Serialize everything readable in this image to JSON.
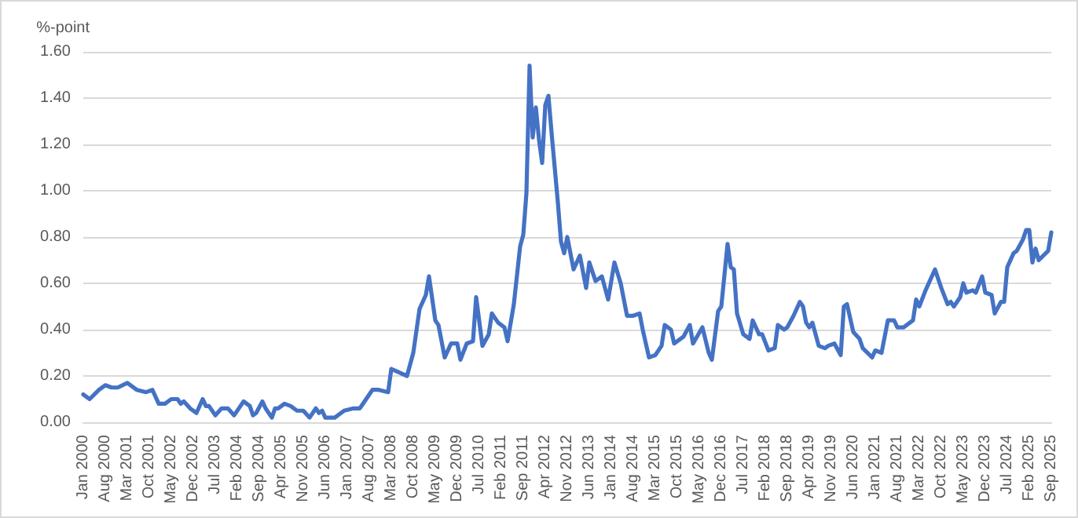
{
  "chart_data": {
    "type": "line",
    "ylabel": "%-point",
    "x": [
      "2000-01",
      "2000-03",
      "2000-06",
      "2000-08",
      "2000-10",
      "2000-12",
      "2001-03",
      "2001-06",
      "2001-09",
      "2001-11",
      "2002-01",
      "2002-03",
      "2002-05",
      "2002-07",
      "2002-08",
      "2002-09",
      "2002-11",
      "2003-01",
      "2003-03",
      "2003-04",
      "2003-05",
      "2003-07",
      "2003-09",
      "2003-11",
      "2004-01",
      "2004-03",
      "2004-04",
      "2004-06",
      "2004-07",
      "2004-08",
      "2004-10",
      "2004-11",
      "2005-01",
      "2005-02",
      "2005-03",
      "2005-05",
      "2005-07",
      "2005-09",
      "2005-11",
      "2006-01",
      "2006-03",
      "2006-04",
      "2006-05",
      "2006-06",
      "2006-09",
      "2006-12",
      "2007-03",
      "2007-05",
      "2007-07",
      "2007-09",
      "2007-11",
      "2008-02",
      "2008-03",
      "2008-08",
      "2008-10",
      "2008-12",
      "2009-02",
      "2009-03",
      "2009-05",
      "2009-06",
      "2009-08",
      "2009-10",
      "2009-12",
      "2010-01",
      "2010-03",
      "2010-05",
      "2010-06",
      "2010-08",
      "2010-10",
      "2010-11",
      "2011-01",
      "2011-03",
      "2011-04",
      "2011-06",
      "2011-08",
      "2011-09",
      "2011-10",
      "2011-11",
      "2011-12",
      "2012-01",
      "2012-02",
      "2012-03",
      "2012-04",
      "2012-05",
      "2012-06",
      "2012-08",
      "2012-09",
      "2012-10",
      "2012-11",
      "2013-01",
      "2013-03",
      "2013-05",
      "2013-06",
      "2013-08",
      "2013-10",
      "2013-12",
      "2014-02",
      "2014-04",
      "2014-06",
      "2014-08",
      "2014-10",
      "2014-11",
      "2015-01",
      "2015-03",
      "2015-05",
      "2015-06",
      "2015-08",
      "2015-09",
      "2015-12",
      "2016-02",
      "2016-03",
      "2016-06",
      "2016-08",
      "2016-09",
      "2016-11",
      "2016-12",
      "2017-02",
      "2017-03",
      "2017-04",
      "2017-05",
      "2017-07",
      "2017-09",
      "2017-10",
      "2017-12",
      "2018-01",
      "2018-03",
      "2018-05",
      "2018-06",
      "2018-08",
      "2018-09",
      "2018-11",
      "2019-01",
      "2019-02",
      "2019-03",
      "2019-04",
      "2019-05",
      "2019-07",
      "2019-09",
      "2019-10",
      "2019-12",
      "2020-02",
      "2020-03",
      "2020-04",
      "2020-06",
      "2020-08",
      "2020-09",
      "2020-12",
      "2021-01",
      "2021-03",
      "2021-05",
      "2021-07",
      "2021-08",
      "2021-10",
      "2022-01",
      "2022-02",
      "2022-03",
      "2022-05",
      "2022-08",
      "2022-10",
      "2022-12",
      "2023-01",
      "2023-02",
      "2023-04",
      "2023-05",
      "2023-06",
      "2023-08",
      "2023-09",
      "2023-11",
      "2023-12",
      "2024-02",
      "2024-03",
      "2024-05",
      "2024-06",
      "2024-07",
      "2024-09",
      "2024-10",
      "2024-12",
      "2025-01",
      "2025-02",
      "2025-03",
      "2025-04",
      "2025-05",
      "2025-08",
      "2025-09"
    ],
    "series": [
      {
        "color": "#4472c4",
        "values": [
          0.12,
          0.1,
          0.14,
          0.16,
          0.15,
          0.15,
          0.17,
          0.14,
          0.13,
          0.14,
          0.08,
          0.08,
          0.1,
          0.1,
          0.08,
          0.09,
          0.06,
          0.04,
          0.1,
          0.07,
          0.07,
          0.03,
          0.06,
          0.06,
          0.03,
          0.07,
          0.09,
          0.07,
          0.03,
          0.04,
          0.09,
          0.06,
          0.02,
          0.06,
          0.06,
          0.08,
          0.07,
          0.05,
          0.05,
          0.02,
          0.06,
          0.04,
          0.05,
          0.02,
          0.02,
          0.05,
          0.06,
          0.06,
          0.1,
          0.14,
          0.14,
          0.13,
          0.23,
          0.2,
          0.3,
          0.49,
          0.55,
          0.63,
          0.44,
          0.42,
          0.28,
          0.34,
          0.34,
          0.27,
          0.34,
          0.35,
          0.54,
          0.33,
          0.38,
          0.47,
          0.43,
          0.41,
          0.35,
          0.51,
          0.76,
          0.81,
          0.99,
          1.54,
          1.23,
          1.36,
          1.22,
          1.12,
          1.37,
          1.41,
          1.25,
          0.95,
          0.78,
          0.73,
          0.8,
          0.66,
          0.72,
          0.58,
          0.69,
          0.61,
          0.63,
          0.53,
          0.69,
          0.6,
          0.46,
          0.46,
          0.47,
          0.4,
          0.28,
          0.29,
          0.33,
          0.42,
          0.4,
          0.34,
          0.37,
          0.42,
          0.34,
          0.41,
          0.3,
          0.27,
          0.48,
          0.5,
          0.77,
          0.67,
          0.66,
          0.47,
          0.38,
          0.36,
          0.44,
          0.38,
          0.38,
          0.31,
          0.32,
          0.42,
          0.4,
          0.41,
          0.46,
          0.52,
          0.5,
          0.43,
          0.41,
          0.43,
          0.33,
          0.32,
          0.33,
          0.34,
          0.29,
          0.5,
          0.51,
          0.39,
          0.36,
          0.32,
          0.28,
          0.31,
          0.3,
          0.44,
          0.44,
          0.41,
          0.41,
          0.44,
          0.53,
          0.5,
          0.57,
          0.66,
          0.58,
          0.51,
          0.52,
          0.5,
          0.54,
          0.6,
          0.56,
          0.57,
          0.56,
          0.63,
          0.56,
          0.55,
          0.47,
          0.52,
          0.52,
          0.67,
          0.73,
          0.74,
          0.79,
          0.83,
          0.83,
          0.69,
          0.75,
          0.7,
          0.74,
          0.82
        ]
      }
    ],
    "xlim": [
      "2000-01",
      "2025-09"
    ],
    "xticks": [
      {
        "value": "2000-01",
        "label": "Jan 2000"
      },
      {
        "value": "2000-08",
        "label": "Aug 2000"
      },
      {
        "value": "2001-03",
        "label": "Mar 2001"
      },
      {
        "value": "2001-10",
        "label": "Oct 2001"
      },
      {
        "value": "2002-05",
        "label": "May 2002"
      },
      {
        "value": "2002-12",
        "label": "Dec 2002"
      },
      {
        "value": "2003-07",
        "label": "Jul 2003"
      },
      {
        "value": "2004-02",
        "label": "Feb 2004"
      },
      {
        "value": "2004-09",
        "label": "Sep 2004"
      },
      {
        "value": "2005-04",
        "label": "Apr 2005"
      },
      {
        "value": "2005-11",
        "label": "Nov 2005"
      },
      {
        "value": "2006-06",
        "label": "Jun 2006"
      },
      {
        "value": "2007-01",
        "label": "Jan 2007"
      },
      {
        "value": "2007-08",
        "label": "Aug 2007"
      },
      {
        "value": "2008-03",
        "label": "Mar 2008"
      },
      {
        "value": "2008-10",
        "label": "Oct 2008"
      },
      {
        "value": "2009-05",
        "label": "May 2009"
      },
      {
        "value": "2009-12",
        "label": "Dec 2009"
      },
      {
        "value": "2010-07",
        "label": "Jul 2010"
      },
      {
        "value": "2011-02",
        "label": "Feb 2011"
      },
      {
        "value": "2011-09",
        "label": "Sep 2011"
      },
      {
        "value": "2012-04",
        "label": "Apr 2012"
      },
      {
        "value": "2012-11",
        "label": "Nov 2012"
      },
      {
        "value": "2013-06",
        "label": "Jun 2013"
      },
      {
        "value": "2014-01",
        "label": "Jan 2014"
      },
      {
        "value": "2014-08",
        "label": "Aug 2014"
      },
      {
        "value": "2015-03",
        "label": "Mar 2015"
      },
      {
        "value": "2015-10",
        "label": "Oct 2015"
      },
      {
        "value": "2016-05",
        "label": "May 2016"
      },
      {
        "value": "2016-12",
        "label": "Dec 2016"
      },
      {
        "value": "2017-07",
        "label": "Jul 2017"
      },
      {
        "value": "2018-02",
        "label": "Feb 2018"
      },
      {
        "value": "2018-09",
        "label": "Sep 2018"
      },
      {
        "value": "2019-04",
        "label": "Apr 2019"
      },
      {
        "value": "2019-11",
        "label": "Nov 2019"
      },
      {
        "value": "2020-06",
        "label": "Jun 2020"
      },
      {
        "value": "2021-01",
        "label": "Jan 2021"
      },
      {
        "value": "2021-08",
        "label": "Aug 2021"
      },
      {
        "value": "2022-03",
        "label": "Mar 2022"
      },
      {
        "value": "2022-10",
        "label": "Oct 2022"
      },
      {
        "value": "2023-05",
        "label": "May 2023"
      },
      {
        "value": "2023-12",
        "label": "Dec 2023"
      },
      {
        "value": "2024-07",
        "label": "Jul 2024"
      },
      {
        "value": "2025-02",
        "label": "Feb 2025"
      },
      {
        "value": "2025-09",
        "label": "Sep 2025"
      }
    ],
    "ylim": [
      0,
      1.6
    ],
    "yticks": [
      {
        "value": 0,
        "label": "0.00"
      },
      {
        "value": 0.2,
        "label": "0.20"
      },
      {
        "value": 0.4,
        "label": "0.40"
      },
      {
        "value": 0.6,
        "label": "0.60"
      },
      {
        "value": 0.8,
        "label": "0.80"
      },
      {
        "value": 1.0,
        "label": "1.00"
      },
      {
        "value": 1.2,
        "label": "1.20"
      },
      {
        "value": 1.4,
        "label": "1.40"
      },
      {
        "value": 1.6,
        "label": "1.60"
      }
    ],
    "grid": "y",
    "marker": "none",
    "line_style": "solid"
  }
}
